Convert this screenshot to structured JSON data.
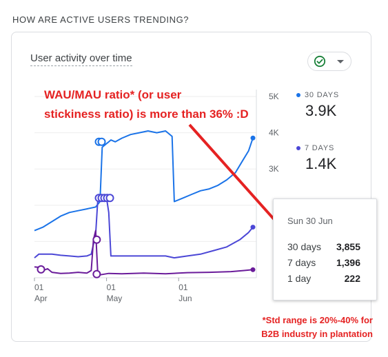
{
  "section": {
    "title": "HOW ARE ACTIVE USERS TRENDING?"
  },
  "card": {
    "title": "User activity over time",
    "compare_button": {
      "icon": "check-circle-icon",
      "caret": "caret-down-icon"
    }
  },
  "legend": [
    {
      "label": "30 DAYS",
      "value": "3.9K",
      "color": "#1a73e8"
    },
    {
      "label": "7 DAYS",
      "value": "1.4K",
      "color": "#4b47d6"
    }
  ],
  "annotation": {
    "line1": "WAU/MAU ratio* (or user",
    "line2": "stickiness ratio) is more than 36% :D"
  },
  "tooltip": {
    "date": "Sun 30 Jun",
    "rows": [
      {
        "label": "30 days",
        "value": "3,855"
      },
      {
        "label": "7 days",
        "value": "1,396"
      },
      {
        "label": "1 day",
        "value": "222"
      }
    ]
  },
  "footnote": {
    "line1": "*Std range is 20%-40% for",
    "line2": "B2B industry in plantation"
  },
  "chart_data": {
    "type": "line",
    "x_tick_labels": [
      {
        "day": "01",
        "month": "Apr"
      },
      {
        "day": "01",
        "month": "May"
      },
      {
        "day": "01",
        "month": "Jun"
      }
    ],
    "y_tick_labels": [
      "5K",
      "4K",
      "3K"
    ],
    "ylim": [
      0,
      5000
    ],
    "colors": {
      "30_days": "#1a73e8",
      "7_days": "#4b47d6",
      "1_day": "#6a1b9a"
    },
    "series": [
      {
        "name": "30 days",
        "points": [
          [
            0,
            1300
          ],
          [
            4,
            1400
          ],
          [
            8,
            1550
          ],
          [
            12,
            1700
          ],
          [
            16,
            1800
          ],
          [
            20,
            1850
          ],
          [
            24,
            1900
          ],
          [
            28,
            1950
          ],
          [
            30,
            2100
          ],
          [
            31,
            3600
          ],
          [
            33,
            3700
          ],
          [
            34,
            3750
          ],
          [
            35,
            3800
          ],
          [
            37,
            3750
          ],
          [
            40,
            3850
          ],
          [
            44,
            3950
          ],
          [
            48,
            4000
          ],
          [
            52,
            4050
          ],
          [
            56,
            4000
          ],
          [
            60,
            4050
          ],
          [
            63,
            3900
          ],
          [
            64,
            2100
          ],
          [
            68,
            2200
          ],
          [
            72,
            2300
          ],
          [
            76,
            2400
          ],
          [
            80,
            2450
          ],
          [
            84,
            2550
          ],
          [
            88,
            2700
          ],
          [
            92,
            2900
          ],
          [
            95,
            3200
          ],
          [
            98,
            3500
          ],
          [
            100,
            3855
          ]
        ]
      },
      {
        "name": "7 days",
        "points": [
          [
            0,
            550
          ],
          [
            2,
            650
          ],
          [
            8,
            650
          ],
          [
            12,
            620
          ],
          [
            16,
            600
          ],
          [
            20,
            580
          ],
          [
            24,
            600
          ],
          [
            26,
            650
          ],
          [
            28,
            1200
          ],
          [
            29,
            2150
          ],
          [
            30,
            2200
          ],
          [
            31,
            2200
          ],
          [
            32,
            2200
          ],
          [
            33,
            2200
          ],
          [
            34,
            1800
          ],
          [
            35,
            600
          ],
          [
            40,
            600
          ],
          [
            50,
            600
          ],
          [
            60,
            600
          ],
          [
            64,
            550
          ],
          [
            70,
            600
          ],
          [
            76,
            650
          ],
          [
            82,
            750
          ],
          [
            88,
            850
          ],
          [
            94,
            1050
          ],
          [
            98,
            1250
          ],
          [
            100,
            1396
          ]
        ]
      },
      {
        "name": "1 day",
        "points": [
          [
            0,
            300
          ],
          [
            3,
            280
          ],
          [
            4,
            200
          ],
          [
            6,
            250
          ],
          [
            8,
            150
          ],
          [
            12,
            120
          ],
          [
            16,
            130
          ],
          [
            20,
            150
          ],
          [
            24,
            130
          ],
          [
            26,
            200
          ],
          [
            27,
            1050
          ],
          [
            28,
            1300
          ],
          [
            29,
            100
          ],
          [
            30,
            80
          ],
          [
            34,
            120
          ],
          [
            40,
            110
          ],
          [
            50,
            130
          ],
          [
            60,
            110
          ],
          [
            70,
            140
          ],
          [
            80,
            150
          ],
          [
            90,
            170
          ],
          [
            96,
            200
          ],
          [
            100,
            222
          ]
        ]
      }
    ]
  }
}
